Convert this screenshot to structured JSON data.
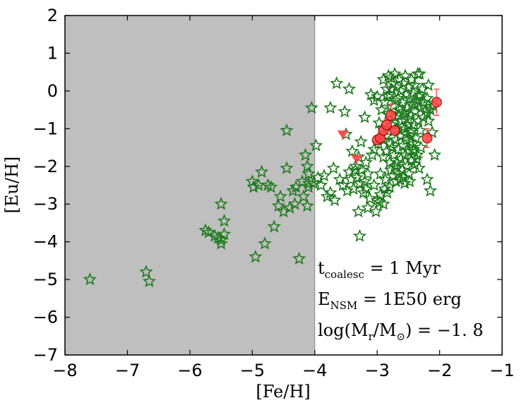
{
  "chart_data": {
    "type": "scatter",
    "xlabel": "[Fe/H]",
    "ylabel": "[Eu/H]",
    "xlim": [
      -8,
      -1
    ],
    "ylim": [
      -7,
      2
    ],
    "xticks": [
      -8,
      -7,
      -6,
      -5,
      -4,
      -3,
      -2,
      -1
    ],
    "yticks": [
      -7,
      -6,
      -5,
      -4,
      -3,
      -2,
      -1,
      0,
      1,
      2
    ],
    "xtick_labels": [
      "−8",
      "−7",
      "−6",
      "−5",
      "−4",
      "−3",
      "−2",
      "−1"
    ],
    "ytick_labels": [
      "−7",
      "−6",
      "−5",
      "−4",
      "−3",
      "−2",
      "−1",
      "0",
      "1",
      "2"
    ],
    "shaded_region": {
      "x": [
        -8,
        -4
      ],
      "color": "#bfbfbf"
    },
    "grid": false,
    "colors": {
      "stars": "#1e7a1e",
      "observations": "#ff4444",
      "shade": "#bfbfbf"
    },
    "annotations": [
      {
        "text": "t",
        "sub": "coalesc",
        "rest": " = 1 Myr"
      },
      {
        "text": "E",
        "sub": "NSM",
        "rest": " = 1E50 erg"
      },
      {
        "text": "log(M",
        "sub": "r",
        "rest": "/M",
        "sub2": "⊙",
        "rest2": ") = −1. 8"
      }
    ],
    "series": [
      {
        "marker": "star",
        "points": [
          [
            -7.6,
            -5.0
          ],
          [
            -6.7,
            -4.8
          ],
          [
            -6.65,
            -5.05
          ],
          [
            -5.75,
            -3.7
          ],
          [
            -5.7,
            -3.75
          ],
          [
            -5.6,
            -3.85
          ],
          [
            -5.55,
            -3.9
          ],
          [
            -5.5,
            -3.95
          ],
          [
            -5.45,
            -3.8
          ],
          [
            -5.5,
            -3.0
          ],
          [
            -5.45,
            -3.45
          ],
          [
            -5.5,
            -4.05
          ],
          [
            -5.0,
            -2.4
          ],
          [
            -4.98,
            -2.55
          ],
          [
            -4.95,
            -4.4
          ],
          [
            -4.9,
            -2.5
          ],
          [
            -4.85,
            -2.15
          ],
          [
            -4.8,
            -4.05
          ],
          [
            -4.75,
            -2.5
          ],
          [
            -4.7,
            -2.55
          ],
          [
            -4.65,
            -3.6
          ],
          [
            -4.58,
            -3.05
          ],
          [
            -4.55,
            -2.8
          ],
          [
            -4.5,
            -3.2
          ],
          [
            -4.45,
            -1.05
          ],
          [
            -4.45,
            -2.05
          ],
          [
            -4.4,
            -3.1
          ],
          [
            -4.35,
            -2.65
          ],
          [
            -4.32,
            -3.0
          ],
          [
            -4.3,
            -2.55
          ],
          [
            -4.25,
            -4.45
          ],
          [
            -4.2,
            -2.4
          ],
          [
            -4.18,
            -2.8
          ],
          [
            -4.15,
            -1.7
          ],
          [
            -4.12,
            -2.0
          ],
          [
            -4.1,
            -2.2
          ],
          [
            -4.1,
            -2.45
          ],
          [
            -4.1,
            -2.55
          ],
          [
            -4.12,
            -3.05
          ],
          [
            -4.05,
            -0.45
          ],
          [
            -4.02,
            -2.45
          ],
          [
            -3.98,
            -1.45
          ],
          [
            -3.95,
            -2.3
          ],
          [
            -3.9,
            -2.5
          ],
          [
            -3.85,
            -2.25
          ],
          [
            -3.8,
            -2.8
          ],
          [
            -3.75,
            -2.7
          ],
          [
            -3.75,
            -0.45
          ],
          [
            -3.7,
            -2.05
          ],
          [
            -3.68,
            -2.9
          ],
          [
            -3.65,
            0.2
          ],
          [
            -3.6,
            -2.35
          ],
          [
            -3.55,
            -2.5
          ],
          [
            -3.52,
            -0.55
          ],
          [
            -3.5,
            -1.15
          ],
          [
            -3.48,
            -2.65
          ],
          [
            -3.45,
            0.05
          ],
          [
            -3.45,
            -2.15
          ],
          [
            -3.42,
            -2.35
          ],
          [
            -3.4,
            -1.6
          ],
          [
            -3.38,
            -2.6
          ],
          [
            -3.35,
            -2.0
          ],
          [
            -3.33,
            -2.3
          ],
          [
            -3.3,
            -3.2
          ],
          [
            -3.3,
            -1.75
          ],
          [
            -3.28,
            -2.45
          ],
          [
            -3.28,
            -3.85
          ],
          [
            -3.25,
            -2.1
          ],
          [
            -3.22,
            -2.7
          ],
          [
            -3.2,
            -2.4
          ],
          [
            -3.2,
            -0.7
          ],
          [
            -3.18,
            -1.9
          ],
          [
            -3.15,
            -2.2
          ],
          [
            -3.15,
            -3.1
          ],
          [
            -3.1,
            -0.1
          ],
          [
            -3.08,
            -1.7
          ],
          [
            -3.05,
            -2.5
          ],
          [
            -3.05,
            -0.25
          ],
          [
            -3.02,
            -3.2
          ],
          [
            -3.0,
            -2.9
          ],
          [
            -3.0,
            -0.15
          ],
          [
            -2.98,
            -1.4
          ],
          [
            -2.95,
            -2.2
          ],
          [
            -2.95,
            -2.75
          ],
          [
            -2.93,
            -0.5
          ],
          [
            -2.92,
            -1.0
          ],
          [
            -2.9,
            0.3
          ],
          [
            -2.9,
            -1.75
          ],
          [
            -2.9,
            -3.0
          ],
          [
            -2.88,
            -0.3
          ],
          [
            -2.87,
            -2.35
          ],
          [
            -2.86,
            -1.2
          ],
          [
            -2.85,
            0.05
          ],
          [
            -2.85,
            -1.6
          ],
          [
            -2.84,
            -2.7
          ],
          [
            -2.82,
            0.4
          ],
          [
            -2.82,
            -0.6
          ],
          [
            -2.8,
            -1.9
          ],
          [
            -2.8,
            -0.1
          ],
          [
            -2.79,
            -1.4
          ],
          [
            -2.78,
            0.35
          ],
          [
            -2.78,
            -2.1
          ],
          [
            -2.77,
            -0.9
          ],
          [
            -2.76,
            -1.5
          ],
          [
            -2.75,
            0.2
          ],
          [
            -2.75,
            -2.25
          ],
          [
            -2.74,
            -0.4
          ],
          [
            -2.73,
            -1.7
          ],
          [
            -2.72,
            0.45
          ],
          [
            -2.72,
            -2.0
          ],
          [
            -2.71,
            -0.7
          ],
          [
            -2.7,
            -1.3
          ],
          [
            -2.7,
            -2.4
          ],
          [
            -2.69,
            0.1
          ],
          [
            -2.68,
            -1.0
          ],
          [
            -2.68,
            -1.9
          ],
          [
            -2.67,
            -0.2
          ],
          [
            -2.66,
            -1.55
          ],
          [
            -2.65,
            0.3
          ],
          [
            -2.65,
            -2.2
          ],
          [
            -2.64,
            -0.5
          ],
          [
            -2.63,
            -1.2
          ],
          [
            -2.62,
            0.0
          ],
          [
            -2.62,
            -1.8
          ],
          [
            -2.61,
            -0.8
          ],
          [
            -2.6,
            -2.1
          ],
          [
            -2.6,
            -0.3
          ],
          [
            -2.59,
            -1.45
          ],
          [
            -2.58,
            0.2
          ],
          [
            -2.58,
            -2.3
          ],
          [
            -2.57,
            -0.6
          ],
          [
            -2.56,
            -1.0
          ],
          [
            -2.55,
            -1.7
          ],
          [
            -2.55,
            0.4
          ],
          [
            -2.54,
            -0.1
          ],
          [
            -2.53,
            -1.3
          ],
          [
            -2.52,
            -2.0
          ],
          [
            -2.52,
            -0.45
          ],
          [
            -2.51,
            -0.9
          ],
          [
            -2.5,
            0.1
          ],
          [
            -2.5,
            -1.6
          ],
          [
            -2.49,
            -2.2
          ],
          [
            -2.48,
            -0.2
          ],
          [
            -2.47,
            -1.1
          ],
          [
            -2.46,
            -0.65
          ],
          [
            -2.45,
            0.3
          ],
          [
            -2.45,
            -1.85
          ],
          [
            -2.44,
            -0.35
          ],
          [
            -2.43,
            -1.4
          ],
          [
            -2.42,
            -0.05
          ],
          [
            -2.41,
            -0.9
          ],
          [
            -2.4,
            -1.95
          ],
          [
            -2.4,
            0.15
          ],
          [
            -2.39,
            -0.55
          ],
          [
            -2.38,
            -1.25
          ],
          [
            -2.37,
            -0.25
          ],
          [
            -2.36,
            -1.7
          ],
          [
            -2.35,
            0.45
          ],
          [
            -2.34,
            -0.8
          ],
          [
            -2.33,
            -2.05
          ],
          [
            -2.32,
            -0.1
          ],
          [
            -2.31,
            -1.05
          ],
          [
            -2.3,
            -0.45
          ],
          [
            -2.3,
            -1.5
          ],
          [
            -2.28,
            0.05
          ],
          [
            -2.26,
            -0.7
          ],
          [
            -2.25,
            -0.3
          ],
          [
            -2.22,
            -0.5
          ],
          [
            -2.2,
            -0.6
          ],
          [
            -2.18,
            -0.8
          ],
          [
            -2.2,
            -0.2
          ],
          [
            -2.15,
            -0.5
          ],
          [
            -2.12,
            -1.1
          ],
          [
            -2.1,
            -0.4
          ],
          [
            -2.08,
            -1.7
          ],
          [
            -2.15,
            -2.65
          ],
          [
            -2.2,
            -2.35
          ],
          [
            -2.18,
            0.15
          ],
          [
            -2.32,
            0.45
          ],
          [
            -2.42,
            -1.55
          ],
          [
            -2.48,
            -2.4
          ],
          [
            -2.56,
            -2.45
          ],
          [
            -2.63,
            -2.35
          ],
          [
            -2.72,
            -1.05
          ],
          [
            -2.8,
            -2.55
          ],
          [
            -2.88,
            -2.6
          ],
          [
            -2.96,
            -2.95
          ],
          [
            -3.05,
            -1.55
          ],
          [
            -3.12,
            -2.85
          ],
          [
            -3.18,
            -2.6
          ],
          [
            -3.26,
            -1.35
          ],
          [
            -3.35,
            -2.1
          ],
          [
            -2.97,
            -0.85
          ],
          [
            -2.9,
            -1.3
          ],
          [
            -2.83,
            -0.15
          ],
          [
            -2.77,
            0.05
          ],
          [
            -2.71,
            -0.25
          ],
          [
            -2.66,
            -0.65
          ],
          [
            -2.6,
            -0.95
          ],
          [
            -2.54,
            -1.15
          ],
          [
            -2.47,
            -1.35
          ],
          [
            -2.42,
            -1.6
          ],
          [
            -2.37,
            -1.8
          ],
          [
            -2.33,
            -0.15
          ],
          [
            -2.5,
            -0.75
          ],
          [
            -2.58,
            -0.55
          ],
          [
            -2.45,
            -1.05
          ],
          [
            -2.4,
            -0.35
          ]
        ]
      },
      {
        "marker": "circle",
        "points": [
          [
            -3.0,
            -1.3
          ],
          [
            -2.95,
            -1.25
          ],
          [
            -2.9,
            -1.05
          ],
          [
            -2.85,
            -0.9
          ],
          [
            -2.78,
            -0.65
          ],
          [
            -2.72,
            -1.05
          ],
          [
            -2.2,
            -1.25
          ],
          [
            -2.05,
            -0.3
          ]
        ],
        "errors": [
          0.1,
          0.1,
          0.12,
          0.15,
          0.3,
          0.1,
          0.25,
          0.35
        ]
      },
      {
        "marker": "triangle-down",
        "points": [
          [
            -3.55,
            -1.15
          ],
          [
            -3.33,
            -1.8
          ]
        ]
      }
    ]
  }
}
